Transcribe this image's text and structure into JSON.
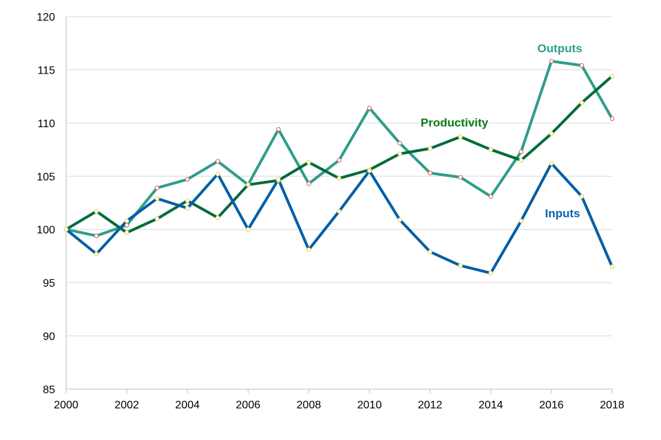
{
  "chart_data": {
    "type": "line",
    "title": "",
    "xlabel": "",
    "ylabel": "",
    "x": [
      2000,
      2001,
      2002,
      2003,
      2004,
      2005,
      2006,
      2007,
      2008,
      2009,
      2010,
      2011,
      2012,
      2013,
      2014,
      2015,
      2016,
      2017,
      2018
    ],
    "xlim": [
      2000,
      2018
    ],
    "ylim": [
      85,
      120
    ],
    "x_ticks": [
      "2000",
      "2002",
      "2004",
      "2006",
      "2008",
      "2010",
      "2012",
      "2014",
      "2016",
      "2018"
    ],
    "y_ticks": [
      "85",
      "90",
      "95",
      "100",
      "105",
      "110",
      "115",
      "120"
    ],
    "grid": "horizontal",
    "legend": "inline labels",
    "series": [
      {
        "name": "Outputs",
        "color": "#2E9E8A",
        "values": [
          100.0,
          99.4,
          100.4,
          103.9,
          104.7,
          106.4,
          104.2,
          109.4,
          104.3,
          106.5,
          111.4,
          108.1,
          105.3,
          104.9,
          103.1,
          107.3,
          115.8,
          115.4,
          110.4
        ]
      },
      {
        "name": "Productivity",
        "color": "#006B3A",
        "values": [
          100.0,
          101.7,
          99.7,
          101.0,
          102.7,
          101.1,
          104.2,
          104.6,
          106.3,
          104.8,
          105.6,
          107.1,
          107.6,
          108.7,
          107.5,
          106.5,
          109.0,
          111.9,
          114.4
        ]
      },
      {
        "name": "Inputs",
        "color": "#005EA5",
        "values": [
          100.0,
          97.7,
          100.8,
          102.9,
          102.0,
          105.2,
          100.0,
          104.7,
          98.1,
          101.7,
          105.5,
          100.9,
          97.9,
          96.6,
          95.9,
          100.8,
          106.2,
          103.1,
          96.5
        ]
      }
    ],
    "labels": [
      {
        "text": "Outputs",
        "color": "#2E9E8A"
      },
      {
        "text": "Productivity",
        "color": "#0A7A1A"
      },
      {
        "text": "Inputs",
        "color": "#0A62B0"
      }
    ]
  }
}
